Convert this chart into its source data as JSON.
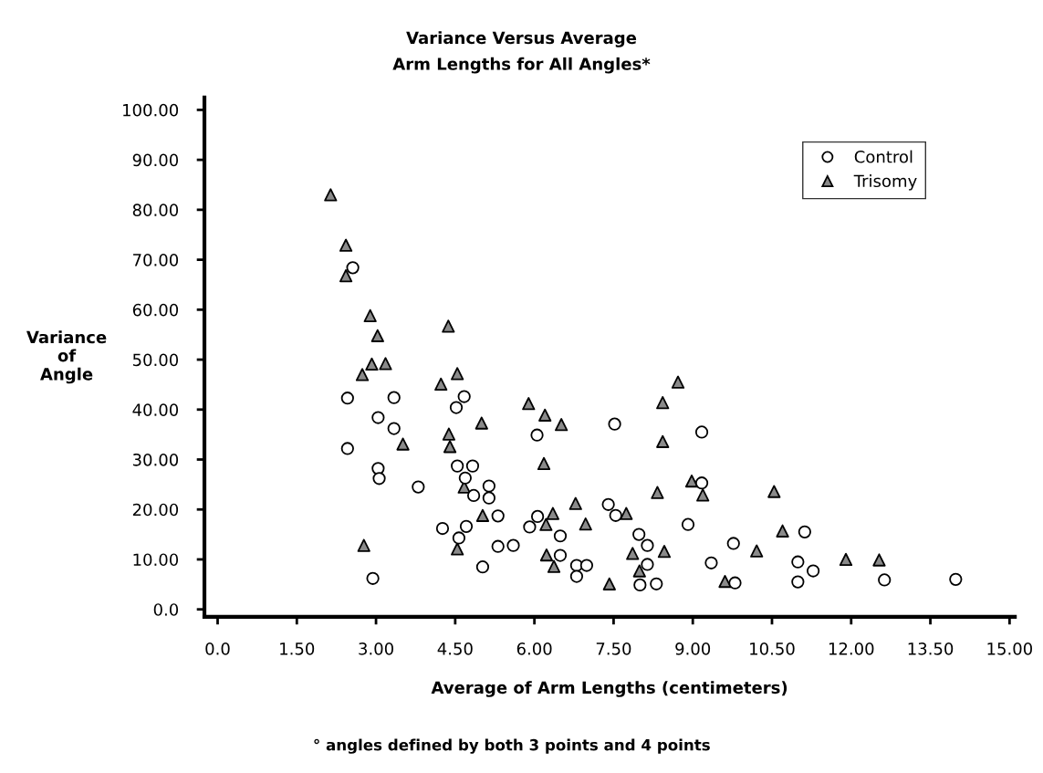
{
  "chart_data": {
    "type": "scatter",
    "title": "Variance Versus Average\nArm Lengths for All Angles*",
    "xlabel": "Average of Arm Lengths (centimeters)",
    "ylabel": "Variance\nof\nAngle",
    "annotations": [
      "° angles defined by both 3 points and 4 points"
    ],
    "xlim": [
      -0.25,
      15.1
    ],
    "ylim": [
      -1.5,
      102.5
    ],
    "xticks": [
      {
        "value": 0,
        "label": "0.0"
      },
      {
        "value": 1.5,
        "label": "1.50"
      },
      {
        "value": 3,
        "label": "3.00"
      },
      {
        "value": 4.5,
        "label": "4.50"
      },
      {
        "value": 6,
        "label": "6.00"
      },
      {
        "value": 7.5,
        "label": "7.50"
      },
      {
        "value": 9,
        "label": "9.00"
      },
      {
        "value": 10.5,
        "label": "10.50"
      },
      {
        "value": 12,
        "label": "12.00"
      },
      {
        "value": 13.5,
        "label": "13.50"
      },
      {
        "value": 15,
        "label": "15.00"
      }
    ],
    "yticks": [
      {
        "value": 0,
        "label": "0.0"
      },
      {
        "value": 10,
        "label": "10.00"
      },
      {
        "value": 20,
        "label": "20.00"
      },
      {
        "value": 30,
        "label": "30.00"
      },
      {
        "value": 40,
        "label": "40.00"
      },
      {
        "value": 50,
        "label": "50.00"
      },
      {
        "value": 60,
        "label": "60.00"
      },
      {
        "value": 70,
        "label": "70.00"
      },
      {
        "value": 80,
        "label": "80.00"
      },
      {
        "value": 90,
        "label": "90.00"
      },
      {
        "value": 100,
        "label": "100.00"
      }
    ],
    "legend": "top right",
    "series": [
      {
        "name": "Control",
        "color": "#000000",
        "marker": "circle",
        "x": [
          2.56,
          2.46,
          3.34,
          3.04,
          3.34,
          2.46,
          3.04,
          3.06,
          3.8,
          2.94,
          4.67,
          4.52,
          4.54,
          4.83,
          4.69,
          4.85,
          5.14,
          5.14,
          5.31,
          4.26,
          4.71,
          4.57,
          5.02,
          5.31,
          5.6,
          6.06,
          5.91,
          6.49,
          6.49,
          6.05,
          7.52,
          9.17,
          9.17,
          7.4,
          7.54,
          6.8,
          6.99,
          6.8,
          7.98,
          8.14,
          8.14,
          8.0,
          8.31,
          8.91,
          9.77,
          9.35,
          9.8,
          11.12,
          10.99,
          11.28,
          10.99,
          12.63,
          13.98
        ],
        "values": [
          68.4,
          42.3,
          42.4,
          38.4,
          36.2,
          32.2,
          28.2,
          26.2,
          24.5,
          6.2,
          42.6,
          40.4,
          28.7,
          28.7,
          26.3,
          22.8,
          24.7,
          22.3,
          18.7,
          16.2,
          16.6,
          14.3,
          8.5,
          12.6,
          12.8,
          18.6,
          16.5,
          14.7,
          10.8,
          34.9,
          37.1,
          35.5,
          25.3,
          21.0,
          18.8,
          8.8,
          8.8,
          6.6,
          15.0,
          12.8,
          9.0,
          4.9,
          5.1,
          17.0,
          13.2,
          9.3,
          5.3,
          15.5,
          9.5,
          7.7,
          5.5,
          5.9,
          6.0
        ]
      },
      {
        "name": "Trisomy",
        "color": "#8a8a8a",
        "marker": "triangle",
        "x": [
          2.14,
          2.43,
          2.43,
          2.89,
          3.03,
          2.92,
          3.18,
          2.74,
          4.37,
          4.54,
          4.23,
          3.51,
          4.38,
          4.4,
          5.0,
          5.89,
          6.2,
          6.51,
          6.18,
          8.72,
          8.43,
          8.43,
          8.98,
          9.19,
          8.33,
          10.54,
          10.7,
          6.78,
          6.35,
          6.22,
          6.97,
          7.74,
          6.23,
          6.37,
          7.86,
          8.46,
          7.99,
          7.42,
          10.21,
          9.61,
          4.67,
          5.02,
          4.54,
          2.77,
          11.9,
          12.53
        ],
        "values": [
          83.0,
          72.9,
          66.8,
          58.8,
          54.8,
          49.1,
          49.2,
          47.0,
          56.7,
          47.2,
          45.1,
          33.1,
          35.1,
          32.6,
          37.3,
          41.2,
          38.9,
          37.0,
          29.2,
          45.5,
          41.4,
          33.6,
          25.7,
          22.9,
          23.4,
          23.6,
          15.7,
          21.2,
          19.2,
          17.0,
          17.1,
          19.2,
          10.9,
          8.6,
          11.2,
          11.6,
          7.7,
          5.1,
          11.7,
          5.6,
          24.5,
          18.8,
          12.1,
          12.8,
          10.0,
          9.9
        ]
      }
    ]
  }
}
